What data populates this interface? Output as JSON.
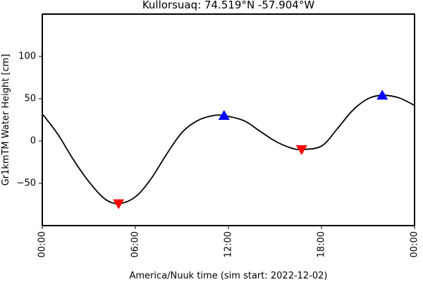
{
  "chart_data": {
    "type": "line",
    "title": "Kullorsuaq: 74.519°N -57.904°W",
    "xlabel": "America/Nuuk time (sim start: 2022-12-02)",
    "ylabel": "Gr1kmTM Water Height [cm]",
    "xlim": [
      "2022-12-02 00:00",
      "2022-12-03 00:00"
    ],
    "ylim": [
      -100,
      150
    ],
    "xticks": [
      {
        "t": "2022-12-02 00:00",
        "label": "00:00"
      },
      {
        "t": "2022-12-02 06:00",
        "label": "06:00"
      },
      {
        "t": "2022-12-02 12:00",
        "label": "12:00"
      },
      {
        "t": "2022-12-02 18:00",
        "label": "18:00"
      },
      {
        "t": "2022-12-03 00:00",
        "label": "00:00"
      }
    ],
    "yticks": [
      -50,
      0,
      50,
      100
    ],
    "grid": false,
    "series": [
      {
        "color": "#000000",
        "x": [
          "2022-12-02 00:00",
          "2022-12-02 01:00",
          "2022-12-02 02:00",
          "2022-12-02 03:00",
          "2022-12-02 04:00",
          "2022-12-02 04:55",
          "2022-12-02 06:00",
          "2022-12-02 07:00",
          "2022-12-02 08:00",
          "2022-12-02 09:00",
          "2022-12-02 10:00",
          "2022-12-02 11:00",
          "2022-12-02 11:43",
          "2022-12-02 13:00",
          "2022-12-02 14:00",
          "2022-12-02 15:00",
          "2022-12-02 16:00",
          "2022-12-02 16:43",
          "2022-12-02 18:00",
          "2022-12-02 19:00",
          "2022-12-02 20:00",
          "2022-12-02 21:00",
          "2022-12-02 21:55",
          "2022-12-02 23:00",
          "2022-12-03 00:00"
        ],
        "values": [
          32,
          8,
          -22,
          -48,
          -68,
          -74,
          -66,
          -45,
          -16,
          10,
          24,
          30,
          30,
          24,
          12,
          0,
          -8,
          -10,
          -6,
          14,
          36,
          50,
          54,
          51,
          42
        ]
      }
    ],
    "markers": [
      {
        "kind": "high",
        "t": "2022-12-02 11:43",
        "value": 30,
        "color": "#0000ff"
      },
      {
        "kind": "high",
        "t": "2022-12-02 21:55",
        "value": 54,
        "color": "#0000ff"
      },
      {
        "kind": "low",
        "t": "2022-12-02 04:55",
        "value": -74,
        "color": "#ff0000"
      },
      {
        "kind": "low",
        "t": "2022-12-02 16:43",
        "value": -10,
        "color": "#ff0000"
      }
    ]
  }
}
